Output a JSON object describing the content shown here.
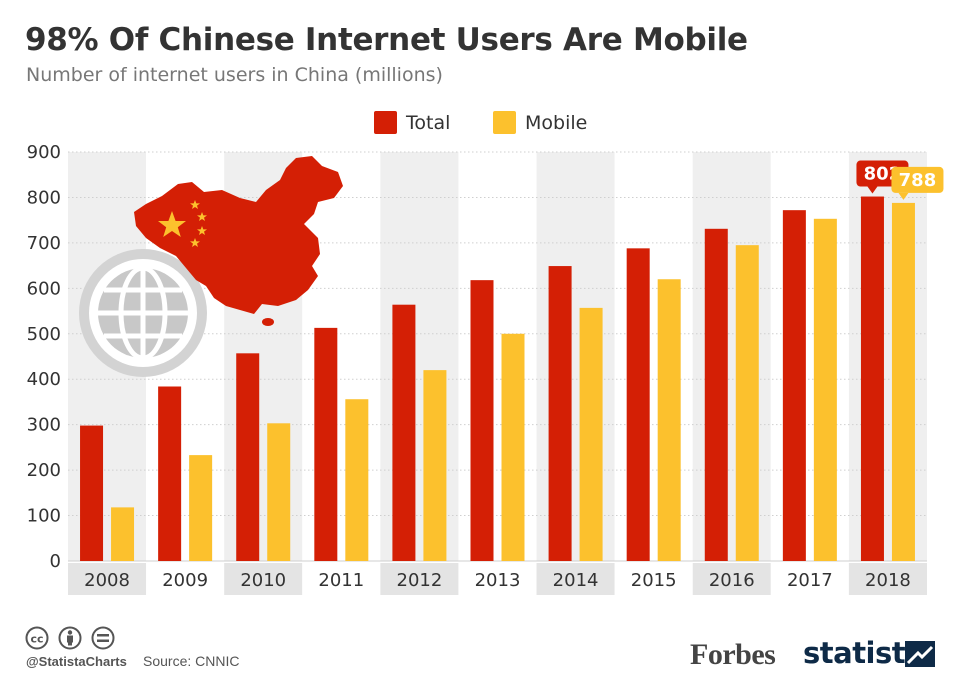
{
  "header": {
    "title": "98% Of Chinese Internet Users Are Mobile",
    "subtitle": "Number of internet users in China (millions)"
  },
  "chart_data": {
    "type": "bar",
    "categories": [
      "2008",
      "2009",
      "2010",
      "2011",
      "2012",
      "2013",
      "2014",
      "2015",
      "2016",
      "2017",
      "2018"
    ],
    "series": [
      {
        "name": "Total",
        "color": "#d41f05",
        "values": [
          298,
          384,
          457,
          513,
          564,
          618,
          649,
          688,
          731,
          772,
          802
        ]
      },
      {
        "name": "Mobile",
        "color": "#fcc12d",
        "values": [
          118,
          233,
          303,
          356,
          420,
          500,
          557,
          620,
          695,
          753,
          788
        ]
      }
    ],
    "yticks": [
      0,
      100,
      200,
      300,
      400,
      500,
      600,
      700,
      800,
      900
    ],
    "ylim": [
      0,
      900
    ],
    "legend_position": "top-center",
    "grid": true,
    "annotations": [
      {
        "series": "Total",
        "category": "2018",
        "text": "802"
      },
      {
        "series": "Mobile",
        "category": "2018",
        "text": "788"
      }
    ]
  },
  "footer": {
    "handle": "@StatistaCharts",
    "source": "Source: CNNIC",
    "brand_forbes": "Forbes",
    "brand_statista": "statista"
  },
  "icons": [
    "cc-icon",
    "attribution-icon",
    "no-derivatives-icon",
    "china-map-icon",
    "globe-icon",
    "statista-logo-icon"
  ]
}
